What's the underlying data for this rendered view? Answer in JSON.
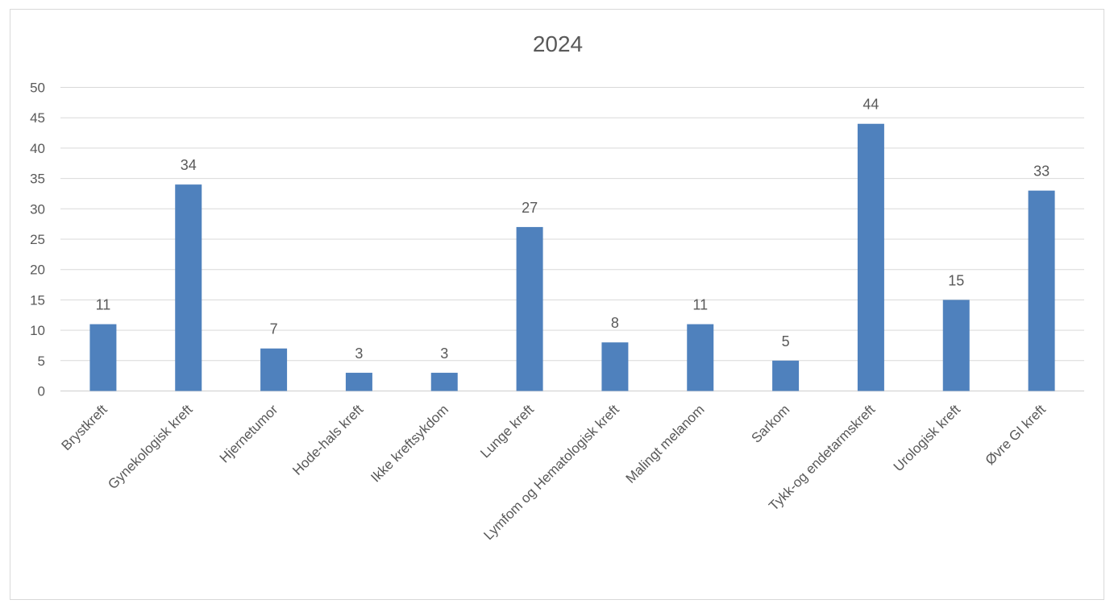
{
  "chart_data": {
    "type": "bar",
    "title": "2024",
    "xlabel": "",
    "ylabel": "",
    "categories": [
      "Brystkreft",
      "Gynekologisk kreft",
      "Hjernetumor",
      "Hode-hals kreft",
      "Ikke kreftsykdom",
      "Lunge kreft",
      "Lymfom og Hematologisk kreft",
      "Malingt melanom",
      "Sarkom",
      "Tykk-og endetarmskreft",
      "Urologisk kreft",
      "Øvre GI kreft"
    ],
    "values": [
      11,
      34,
      7,
      3,
      3,
      27,
      8,
      11,
      5,
      44,
      15,
      33
    ],
    "ylim": [
      0,
      50
    ],
    "yticks": [
      "0",
      "5",
      "10",
      "15",
      "20",
      "25",
      "30",
      "35",
      "40",
      "45",
      "50"
    ],
    "grid": true,
    "legend": "none",
    "colors": {
      "bar": "#4f81bd",
      "grid": "#d9d9d9",
      "text": "#595959"
    }
  }
}
